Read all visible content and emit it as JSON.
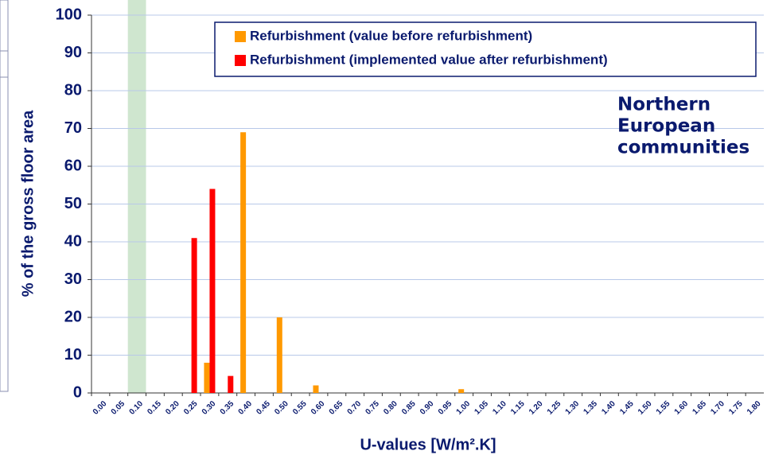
{
  "chart_data": {
    "type": "bar",
    "categories": [
      "0.00",
      "0.05",
      "0.10",
      "0.15",
      "0.20",
      "0.25",
      "0.30",
      "0.35",
      "0.40",
      "0.45",
      "0.50",
      "0.55",
      "0.60",
      "0.65",
      "0.70",
      "0.75",
      "0.80",
      "0.85",
      "0.90",
      "0.95",
      "1.00",
      "1.05",
      "1.10",
      "1.15",
      "1.20",
      "1.25",
      "1.30",
      "1.35",
      "1.40",
      "1.45",
      "1.50",
      "1.55",
      "1.60",
      "1.65",
      "1.70",
      "1.75",
      "1.80"
    ],
    "series": [
      {
        "name": "Refurbishment (value before refurbishment)",
        "color": "#ff9900",
        "values": [
          0,
          0,
          0,
          0,
          0,
          0,
          8,
          0,
          69,
          0,
          20,
          0,
          2,
          0,
          0,
          0,
          0,
          0,
          0,
          0,
          1,
          0,
          0,
          0,
          0,
          0,
          0,
          0,
          0,
          0,
          0,
          0,
          0,
          0,
          0,
          0,
          0
        ]
      },
      {
        "name": "Refurbishment (implemented value after refurbishment)",
        "color": "#ff0000",
        "values": [
          0,
          0,
          0,
          0,
          0,
          41,
          54,
          4.5,
          0,
          0,
          0,
          0,
          0,
          0,
          0,
          0,
          0,
          0,
          0,
          0,
          0,
          0,
          0,
          0,
          0,
          0,
          0,
          0,
          0,
          0,
          0,
          0,
          0,
          0,
          0,
          0,
          0
        ]
      }
    ],
    "xlabel": "U-values [W/m².K]",
    "ylabel": "% of the gross floor area",
    "annotation": [
      "Northern",
      "European",
      "communities"
    ],
    "highlight": "0.10",
    "highlight_color": "#cfe6cf",
    "ylim": [
      0,
      100
    ],
    "yticks": [
      0,
      10,
      20,
      30,
      40,
      50,
      60,
      70,
      80,
      90,
      100
    ],
    "grid": true
  }
}
